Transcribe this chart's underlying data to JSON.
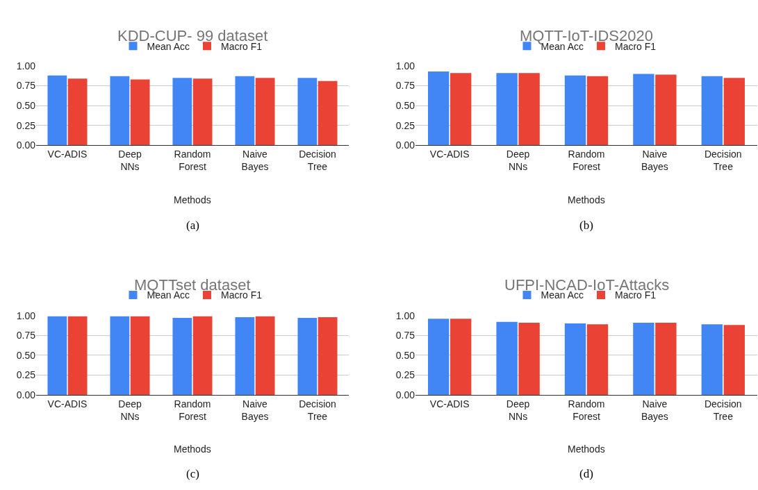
{
  "chart_data": [
    {
      "type": "bar",
      "title": "KDD-CUP- 99 dataset",
      "xlabel": "Methods",
      "categories": [
        "VC-ADIS",
        "Deep NNs",
        "Random Forest",
        "Naive Bayes",
        "Decision Tree"
      ],
      "series": [
        {
          "name": "Mean Acc",
          "color": "#4285f4",
          "values": [
            0.88,
            0.87,
            0.85,
            0.87,
            0.85
          ]
        },
        {
          "name": "Macro F1",
          "color": "#ea4335",
          "values": [
            0.84,
            0.83,
            0.84,
            0.85,
            0.81
          ]
        }
      ],
      "ylim": [
        0,
        1
      ],
      "yticks": [
        {
          "value": 0,
          "label": "0.00"
        },
        {
          "value": 0.25,
          "label": "0.25"
        },
        {
          "value": 0.5,
          "label": "0.50"
        },
        {
          "value": 0.75,
          "label": "0.75"
        },
        {
          "value": 1,
          "label": "1.00"
        }
      ],
      "grid": "y",
      "legend": "top",
      "annotations": [
        "(a)"
      ]
    },
    {
      "type": "bar",
      "title": "MQTT-IoT-IDS2020",
      "xlabel": "Methods",
      "categories": [
        "VC-ADIS",
        "Deep NNs",
        "Random Forest",
        "Naive Bayes",
        "Decision Tree"
      ],
      "series": [
        {
          "name": "Mean Acc",
          "color": "#4285f4",
          "values": [
            0.93,
            0.91,
            0.88,
            0.9,
            0.87
          ]
        },
        {
          "name": "Macro F1",
          "color": "#ea4335",
          "values": [
            0.91,
            0.91,
            0.87,
            0.89,
            0.85
          ]
        }
      ],
      "ylim": [
        0,
        1
      ],
      "yticks": [
        {
          "value": 0,
          "label": "0.00"
        },
        {
          "value": 0.25,
          "label": "0.25"
        },
        {
          "value": 0.5,
          "label": "0.50"
        },
        {
          "value": 0.75,
          "label": "0.75"
        },
        {
          "value": 1,
          "label": "1.00"
        }
      ],
      "grid": "y",
      "legend": "top",
      "annotations": [
        "(b)"
      ]
    },
    {
      "type": "bar",
      "title": "MQTTset dataset",
      "xlabel": "Methods",
      "categories": [
        "VC-ADIS",
        "Deep NNs",
        "Random Forest",
        "Naive Bayes",
        "Decision Tree"
      ],
      "series": [
        {
          "name": "Mean Acc",
          "color": "#4285f4",
          "values": [
            0.99,
            0.99,
            0.97,
            0.98,
            0.97
          ]
        },
        {
          "name": "Macro F1",
          "color": "#ea4335",
          "values": [
            0.99,
            0.99,
            0.99,
            0.99,
            0.98
          ]
        }
      ],
      "ylim": [
        0,
        1
      ],
      "yticks": [
        {
          "value": 0,
          "label": "0.00"
        },
        {
          "value": 0.25,
          "label": "0.25"
        },
        {
          "value": 0.5,
          "label": "0.50"
        },
        {
          "value": 0.75,
          "label": "0.75"
        },
        {
          "value": 1,
          "label": "1.00"
        }
      ],
      "grid": "y",
      "legend": "top",
      "annotations": [
        "(c)"
      ]
    },
    {
      "type": "bar",
      "title": "UFPI-NCAD-IoT-Attacks",
      "xlabel": "Methods",
      "categories": [
        "VC-ADIS",
        "Deep NNs",
        "Random Forest",
        "Naive Bayes",
        "Decision Tree"
      ],
      "series": [
        {
          "name": "Mean Acc",
          "color": "#4285f4",
          "values": [
            0.96,
            0.92,
            0.9,
            0.91,
            0.89
          ]
        },
        {
          "name": "Macro F1",
          "color": "#ea4335",
          "values": [
            0.96,
            0.91,
            0.89,
            0.91,
            0.88
          ]
        }
      ],
      "ylim": [
        0,
        1
      ],
      "yticks": [
        {
          "value": 0,
          "label": "0.00"
        },
        {
          "value": 0.25,
          "label": "0.25"
        },
        {
          "value": 0.5,
          "label": "0.50"
        },
        {
          "value": 0.75,
          "label": "0.75"
        },
        {
          "value": 1,
          "label": "1.00"
        }
      ],
      "grid": "y",
      "legend": "top",
      "annotations": [
        "(d)"
      ]
    }
  ]
}
